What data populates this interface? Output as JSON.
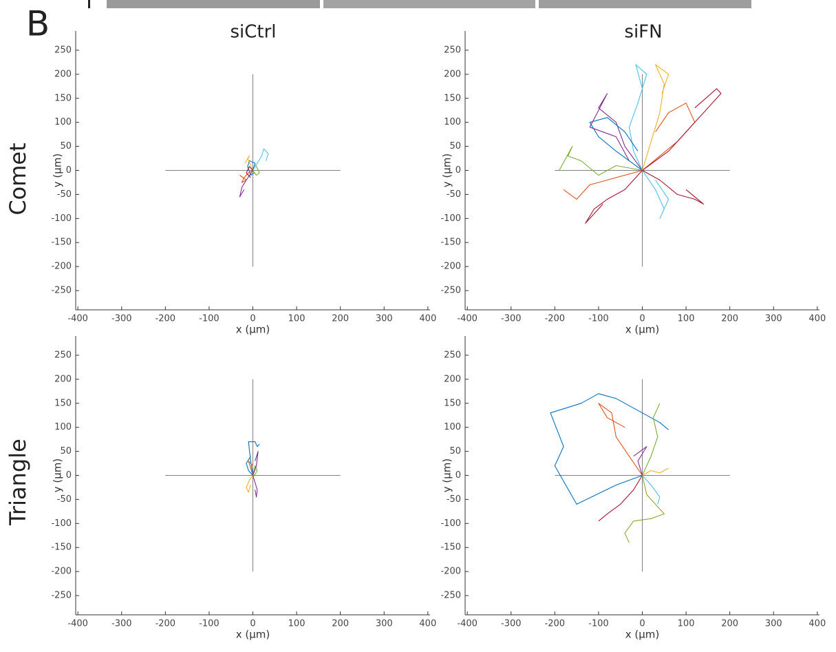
{
  "panel_label": "B",
  "column_titles": [
    "siCtrl",
    "siFN"
  ],
  "row_titles": [
    "Comet",
    "Triangle"
  ],
  "chart_data": [
    {
      "type": "line",
      "xlabel": "x (µm)",
      "ylabel": "y (µm)",
      "xlim": [
        -405,
        405
      ],
      "ylim": [
        -290,
        290
      ],
      "xticks": [
        -400,
        -300,
        -200,
        -100,
        0,
        100,
        200,
        300,
        400
      ],
      "yticks": [
        -250,
        -200,
        -150,
        -100,
        -50,
        0,
        50,
        100,
        150,
        200,
        250
      ],
      "reference_lines": [
        {
          "x": [
            -200,
            200
          ],
          "values": [
            0,
            0
          ],
          "color": "#808080"
        },
        {
          "x": [
            0,
            0
          ],
          "values": [
            -200,
            200
          ],
          "color": "#808080"
        }
      ],
      "series": [
        {
          "color": "#0072BD",
          "x": [
            0,
            5,
            -8,
            -12,
            -5,
            3
          ],
          "values": [
            0,
            15,
            20,
            8,
            -10,
            -5
          ]
        },
        {
          "color": "#D95319",
          "x": [
            0,
            -10,
            -20,
            -25,
            -15,
            -30
          ],
          "values": [
            0,
            -5,
            -15,
            -25,
            -20,
            -10
          ]
        },
        {
          "color": "#EDB120",
          "x": [
            0,
            -5,
            -12,
            -8,
            -18
          ],
          "values": [
            0,
            10,
            25,
            30,
            15
          ]
        },
        {
          "color": "#7E2F8E",
          "x": [
            0,
            -15,
            -25,
            -30,
            -20
          ],
          "values": [
            0,
            -20,
            -35,
            -55,
            -40
          ]
        },
        {
          "color": "#77AC30",
          "x": [
            0,
            8,
            15,
            10,
            5
          ],
          "values": [
            0,
            -10,
            -5,
            5,
            12
          ]
        },
        {
          "color": "#4DBEEE",
          "x": [
            0,
            10,
            20,
            25,
            35,
            30
          ],
          "values": [
            0,
            15,
            30,
            45,
            35,
            20
          ]
        },
        {
          "color": "#A2142F",
          "x": [
            0,
            -8,
            -15,
            -5
          ],
          "values": [
            0,
            8,
            -5,
            -15
          ]
        }
      ]
    },
    {
      "type": "line",
      "xlabel": "x (µm)",
      "ylabel": "y (µm)",
      "xlim": [
        -405,
        405
      ],
      "ylim": [
        -290,
        290
      ],
      "xticks": [
        -400,
        -300,
        -200,
        -100,
        0,
        100,
        200,
        300,
        400
      ],
      "yticks": [
        -250,
        -200,
        -150,
        -100,
        -50,
        0,
        50,
        100,
        150,
        200,
        250
      ],
      "reference_lines": [
        {
          "x": [
            -200,
            200
          ],
          "values": [
            0,
            0
          ],
          "color": "#808080"
        },
        {
          "x": [
            0,
            0
          ],
          "values": [
            -200,
            200
          ],
          "color": "#808080"
        }
      ],
      "series": [
        {
          "color": "#7E2F8E",
          "x": [
            0,
            -40,
            -60,
            -100,
            -80,
            -120,
            -60,
            -30
          ],
          "values": [
            0,
            50,
            100,
            130,
            160,
            90,
            70,
            20
          ]
        },
        {
          "color": "#D95319",
          "x": [
            0,
            40,
            80,
            120,
            100,
            60,
            30
          ],
          "values": [
            0,
            30,
            60,
            100,
            140,
            120,
            80
          ]
        },
        {
          "color": "#A2142F",
          "x": [
            0,
            60,
            100,
            140,
            180,
            170,
            120
          ],
          "values": [
            0,
            40,
            80,
            120,
            160,
            170,
            130
          ]
        },
        {
          "color": "#EDB120",
          "x": [
            0,
            20,
            40,
            50,
            30,
            60,
            45
          ],
          "values": [
            0,
            60,
            120,
            180,
            220,
            200,
            160
          ]
        },
        {
          "color": "#4DBEEE",
          "x": [
            0,
            -20,
            -30,
            -10,
            10,
            -15,
            0
          ],
          "values": [
            0,
            40,
            90,
            140,
            200,
            220,
            170
          ]
        },
        {
          "color": "#77AC30",
          "x": [
            0,
            -60,
            -100,
            -140,
            -170,
            -160,
            -190
          ],
          "values": [
            0,
            10,
            -10,
            20,
            30,
            50,
            0
          ]
        },
        {
          "color": "#A2142F",
          "x": [
            0,
            -40,
            -80,
            -110,
            -130,
            -90
          ],
          "values": [
            0,
            -40,
            -60,
            -80,
            -110,
            -70
          ]
        },
        {
          "color": "#0072BD",
          "x": [
            0,
            -60,
            -100,
            -120,
            -80,
            -40,
            -10
          ],
          "values": [
            0,
            40,
            70,
            100,
            110,
            80,
            40
          ]
        },
        {
          "color": "#4DBEEE",
          "x": [
            0,
            30,
            50,
            40,
            60,
            30
          ],
          "values": [
            0,
            -40,
            -80,
            -100,
            -60,
            -20
          ]
        },
        {
          "color": "#A2142F",
          "x": [
            0,
            40,
            80,
            120,
            140,
            100
          ],
          "values": [
            0,
            -20,
            -50,
            -60,
            -70,
            -40
          ]
        },
        {
          "color": "#D95319",
          "x": [
            0,
            -80,
            -120,
            -150,
            -180
          ],
          "values": [
            0,
            -20,
            -30,
            -60,
            -40
          ]
        }
      ]
    },
    {
      "type": "line",
      "xlabel": "x (µm)",
      "ylabel": "y (µm)",
      "xlim": [
        -405,
        405
      ],
      "ylim": [
        -290,
        290
      ],
      "xticks": [
        -400,
        -300,
        -200,
        -100,
        0,
        100,
        200,
        300,
        400
      ],
      "yticks": [
        -250,
        -200,
        -150,
        -100,
        -50,
        0,
        50,
        100,
        150,
        200,
        250
      ],
      "reference_lines": [
        {
          "x": [
            -200,
            200
          ],
          "values": [
            0,
            0
          ],
          "color": "#808080"
        },
        {
          "x": [
            0,
            0
          ],
          "values": [
            -200,
            200
          ],
          "color": "#808080"
        }
      ],
      "series": [
        {
          "color": "#0072BD",
          "x": [
            0,
            -5,
            -10,
            5,
            10,
            15
          ],
          "values": [
            0,
            30,
            70,
            70,
            60,
            65
          ]
        },
        {
          "color": "#7E2F8E",
          "x": [
            0,
            5,
            10,
            8,
            5
          ],
          "values": [
            0,
            -15,
            -30,
            -45,
            -30
          ]
        },
        {
          "color": "#EDB120",
          "x": [
            0,
            -8,
            -15,
            -10,
            -5
          ],
          "values": [
            0,
            -10,
            -25,
            -35,
            -20
          ]
        },
        {
          "color": "#77AC30",
          "x": [
            0,
            5,
            10,
            0
          ],
          "values": [
            0,
            20,
            10,
            -5
          ]
        },
        {
          "color": "#D95319",
          "x": [
            0,
            -5,
            -10,
            0
          ],
          "values": [
            0,
            15,
            30,
            20
          ]
        },
        {
          "color": "#0072BD",
          "x": [
            0,
            -10,
            -15,
            -5
          ],
          "values": [
            0,
            10,
            25,
            40
          ]
        },
        {
          "color": "#7E2F8E",
          "x": [
            0,
            8,
            12,
            5
          ],
          "values": [
            0,
            20,
            50,
            30
          ]
        }
      ]
    },
    {
      "type": "line",
      "xlabel": "x (µm)",
      "ylabel": "y (µm)",
      "xlim": [
        -405,
        405
      ],
      "ylim": [
        -290,
        290
      ],
      "xticks": [
        -400,
        -300,
        -200,
        -100,
        0,
        100,
        200,
        300,
        400
      ],
      "yticks": [
        -250,
        -200,
        -150,
        -100,
        -50,
        0,
        50,
        100,
        150,
        200,
        250
      ],
      "reference_lines": [
        {
          "x": [
            -200,
            200
          ],
          "values": [
            0,
            0
          ],
          "color": "#808080"
        },
        {
          "x": [
            0,
            0
          ],
          "values": [
            -200,
            200
          ],
          "color": "#808080"
        }
      ],
      "series": [
        {
          "color": "#0072BD",
          "x": [
            0,
            -60,
            -150,
            -200,
            -180,
            -210,
            -140,
            -100,
            -60,
            0,
            40,
            60
          ],
          "values": [
            0,
            -20,
            -60,
            20,
            60,
            130,
            150,
            170,
            160,
            130,
            110,
            95
          ]
        },
        {
          "color": "#D95319",
          "x": [
            0,
            -30,
            -60,
            -70,
            -100,
            -80,
            -40
          ],
          "values": [
            0,
            40,
            80,
            130,
            150,
            120,
            100
          ]
        },
        {
          "color": "#A2142F",
          "x": [
            0,
            -20,
            -50,
            -80,
            -100
          ],
          "values": [
            0,
            -30,
            -60,
            -80,
            -95
          ]
        },
        {
          "color": "#9AA02C",
          "x": [
            0,
            10,
            40,
            50,
            20,
            -20,
            -40,
            -30
          ],
          "values": [
            0,
            -40,
            -70,
            -80,
            -90,
            -95,
            -120,
            -140
          ]
        },
        {
          "color": "#77AC30",
          "x": [
            0,
            20,
            35,
            25,
            40
          ],
          "values": [
            0,
            40,
            80,
            120,
            150
          ]
        },
        {
          "color": "#4DBEEE",
          "x": [
            0,
            20,
            40,
            35
          ],
          "values": [
            0,
            -20,
            -45,
            -60
          ]
        },
        {
          "color": "#EDB120",
          "x": [
            0,
            20,
            40,
            60
          ],
          "values": [
            0,
            10,
            5,
            15
          ]
        },
        {
          "color": "#7E2F8E",
          "x": [
            0,
            -10,
            10,
            -20
          ],
          "values": [
            0,
            30,
            60,
            40
          ]
        }
      ]
    }
  ]
}
